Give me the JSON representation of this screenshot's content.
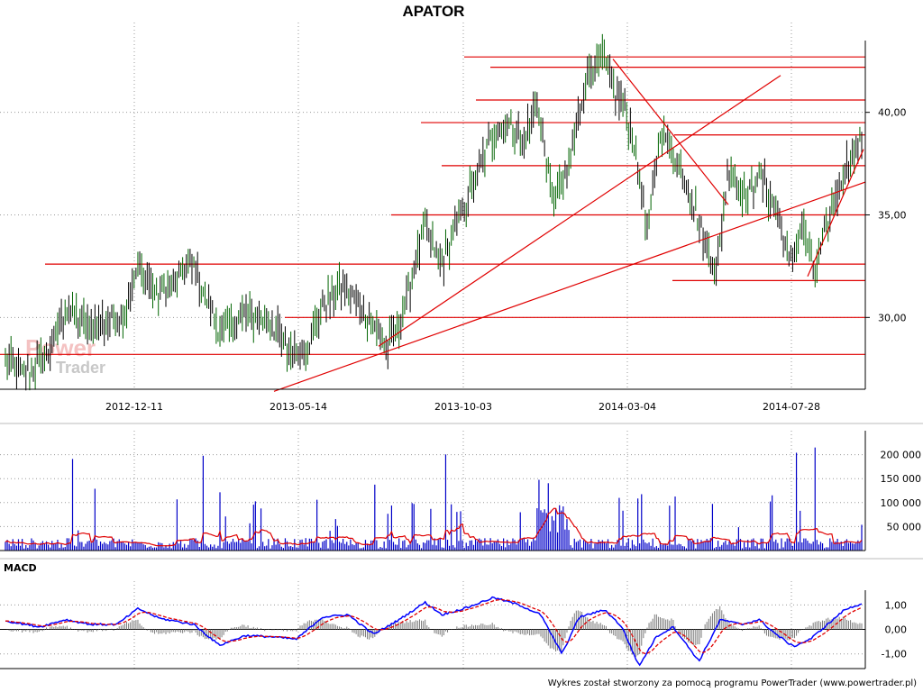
{
  "title": "APATOR",
  "footer": "Wykres został stworzony za pomocą programu PowerTrader (www.powertrader.pl)",
  "watermark": {
    "line1": "Power",
    "line2": "Trader"
  },
  "colors": {
    "price": "#006400",
    "support": "#e00000",
    "volume": "#0000c8",
    "volume_avg": "#e00000",
    "macd": "#0000ff",
    "signal": "#e00000",
    "histogram": "#7a7a7a",
    "grid": "#9a9a9a"
  },
  "chart_data": [
    {
      "type": "line",
      "name": "price",
      "x_labels": [
        "2012-12-11",
        "2013-05-14",
        "2013-10-03",
        "2014-03-04",
        "2014-07-28"
      ],
      "y_ticks": [
        "30,00",
        "35,00",
        "40,00"
      ],
      "y_tick_values": [
        30,
        35,
        40
      ],
      "ylim": [
        26.5,
        43.5
      ],
      "price_anchors": [
        [
          0,
          28.0
        ],
        [
          0.02,
          27.1
        ],
        [
          0.05,
          28.2
        ],
        [
          0.07,
          30.4
        ],
        [
          0.1,
          29.5
        ],
        [
          0.14,
          30.3
        ],
        [
          0.155,
          32.5
        ],
        [
          0.18,
          31.1
        ],
        [
          0.22,
          32.5
        ],
        [
          0.25,
          29.3
        ],
        [
          0.28,
          30.2
        ],
        [
          0.31,
          29.7
        ],
        [
          0.33,
          28.4
        ],
        [
          0.35,
          28.3
        ],
        [
          0.37,
          30.6
        ],
        [
          0.395,
          31.5
        ],
        [
          0.42,
          30.2
        ],
        [
          0.445,
          28.5
        ],
        [
          0.46,
          29.6
        ],
        [
          0.475,
          32.0
        ],
        [
          0.49,
          34.3
        ],
        [
          0.51,
          32.6
        ],
        [
          0.525,
          34.5
        ],
        [
          0.545,
          36.3
        ],
        [
          0.565,
          38.5
        ],
        [
          0.585,
          39.6
        ],
        [
          0.605,
          38.5
        ],
        [
          0.62,
          40.6
        ],
        [
          0.64,
          35.6
        ],
        [
          0.655,
          36.8
        ],
        [
          0.68,
          42.0
        ],
        [
          0.7,
          42.5
        ],
        [
          0.71,
          41.0
        ],
        [
          0.72,
          40.6
        ],
        [
          0.735,
          38.4
        ],
        [
          0.75,
          34.0
        ],
        [
          0.765,
          39.3
        ],
        [
          0.78,
          38.1
        ],
        [
          0.8,
          35.9
        ],
        [
          0.83,
          32.2
        ],
        [
          0.845,
          37.3
        ],
        [
          0.865,
          35.8
        ],
        [
          0.88,
          37.0
        ],
        [
          0.9,
          35.2
        ],
        [
          0.915,
          32.7
        ],
        [
          0.93,
          34.5
        ],
        [
          0.945,
          32.2
        ],
        [
          0.96,
          34.5
        ],
        [
          0.98,
          37.2
        ],
        [
          1.0,
          38.7
        ]
      ],
      "support_levels": [
        {
          "value": 28.2
        },
        {
          "value": 30.0
        },
        {
          "value": 32.6
        },
        {
          "value": 31.8
        },
        {
          "value": 35.0
        },
        {
          "value": 37.4
        },
        {
          "value": 38.9
        },
        {
          "value": 39.5
        },
        {
          "value": 40.6
        },
        {
          "value": 42.2
        },
        {
          "value": 42.7
        }
      ],
      "trend_lines": [
        {
          "from": [
            "2013-05-14",
            26.4
          ],
          "to": [
            "2014-07-28+",
            36.6
          ]
        },
        {
          "from": [
            "2013-08",
            28.6
          ],
          "to": [
            "2014-07",
            41.8
          ]
        },
        {
          "from": [
            "2014-02",
            42.6
          ],
          "to": [
            "2014-05",
            35.5
          ]
        },
        {
          "from": [
            "2014-08",
            32.0
          ],
          "to": [
            "2014-09",
            38.2
          ]
        }
      ]
    },
    {
      "type": "bar",
      "name": "volume",
      "y_ticks": [
        "50 000",
        "100 000",
        "150 000",
        "200 000"
      ],
      "y_tick_values": [
        50000,
        100000,
        150000,
        200000
      ],
      "ylim": [
        0,
        250000
      ]
    },
    {
      "type": "line",
      "name": "MACD",
      "label": "MACD",
      "y_ticks": [
        "1,00",
        "0,00",
        "-1,00"
      ],
      "y_tick_values": [
        1.0,
        0.0,
        -1.0
      ],
      "ylim": [
        -1.6,
        1.6
      ],
      "macd_anchors": [
        [
          0,
          0.35
        ],
        [
          0.04,
          0.1
        ],
        [
          0.07,
          0.4
        ],
        [
          0.1,
          0.2
        ],
        [
          0.13,
          0.2
        ],
        [
          0.155,
          0.85
        ],
        [
          0.18,
          0.45
        ],
        [
          0.22,
          0.2
        ],
        [
          0.25,
          -0.65
        ],
        [
          0.28,
          -0.25
        ],
        [
          0.31,
          -0.3
        ],
        [
          0.34,
          -0.4
        ],
        [
          0.37,
          0.5
        ],
        [
          0.4,
          0.6
        ],
        [
          0.43,
          -0.2
        ],
        [
          0.46,
          0.4
        ],
        [
          0.49,
          1.1
        ],
        [
          0.51,
          0.6
        ],
        [
          0.54,
          0.9
        ],
        [
          0.57,
          1.3
        ],
        [
          0.6,
          1.0
        ],
        [
          0.625,
          0.6
        ],
        [
          0.65,
          -1.0
        ],
        [
          0.67,
          0.5
        ],
        [
          0.7,
          0.8
        ],
        [
          0.72,
          0.1
        ],
        [
          0.74,
          -1.5
        ],
        [
          0.76,
          -0.3
        ],
        [
          0.78,
          0.1
        ],
        [
          0.81,
          -1.3
        ],
        [
          0.835,
          0.4
        ],
        [
          0.86,
          0.2
        ],
        [
          0.88,
          0.4
        ],
        [
          0.9,
          -0.2
        ],
        [
          0.92,
          -0.7
        ],
        [
          0.94,
          -0.4
        ],
        [
          0.96,
          0.2
        ],
        [
          0.98,
          0.8
        ],
        [
          1.0,
          1.05
        ]
      ]
    }
  ]
}
